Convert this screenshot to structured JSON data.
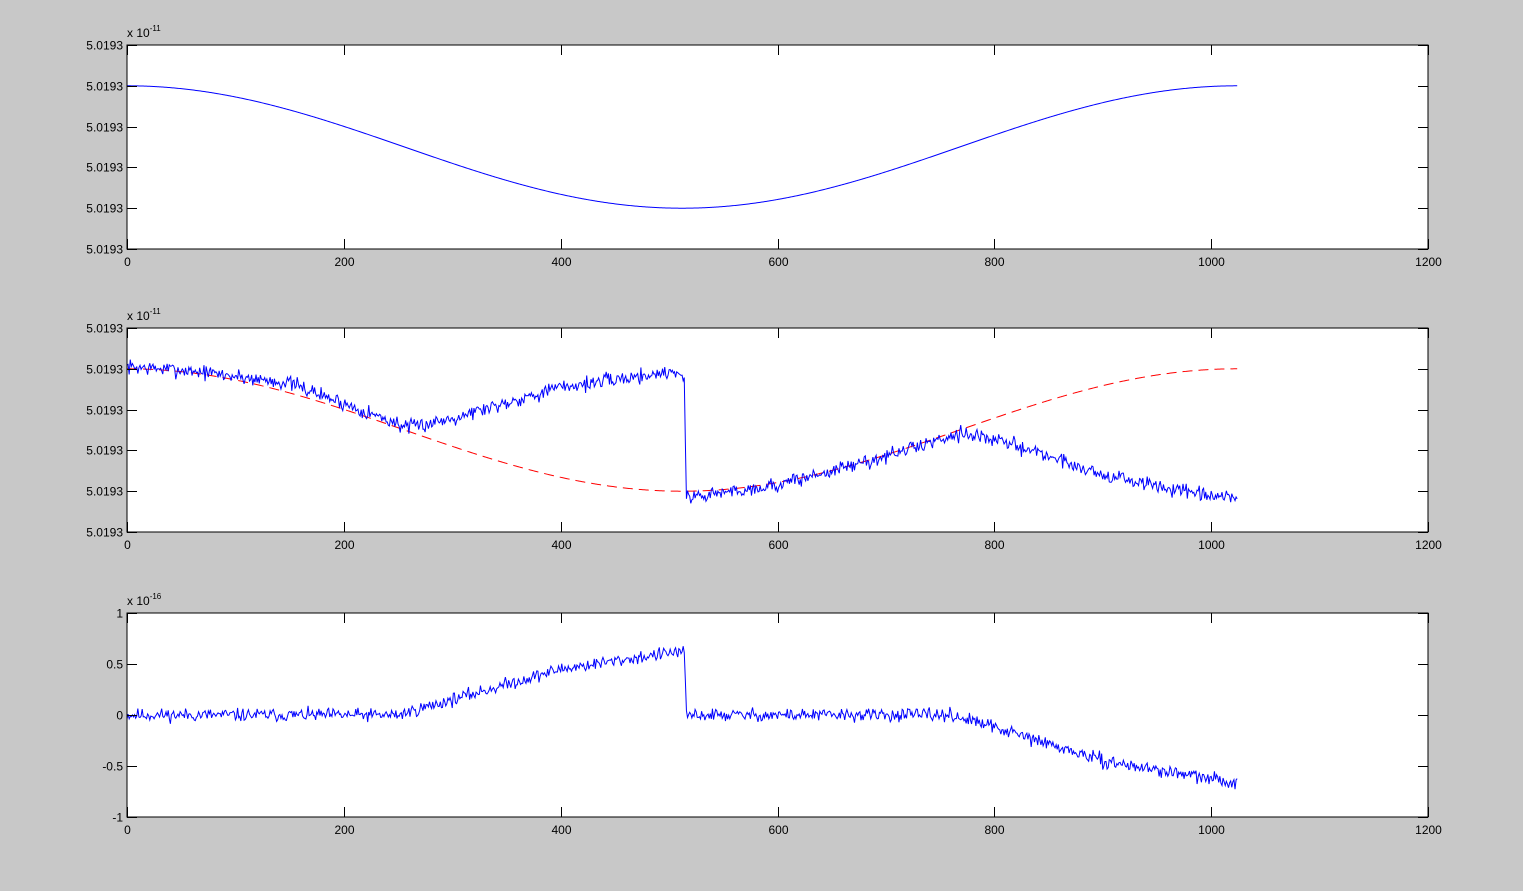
{
  "figure_background": "#c8c8c8",
  "axes_background": "#ffffff",
  "chart_data": [
    {
      "type": "line",
      "title": "",
      "xlabel": "",
      "ylabel": "",
      "xlim": [
        0,
        1200
      ],
      "xticks": [
        0,
        200,
        400,
        600,
        800,
        1000,
        1200
      ],
      "ylim": [
        0,
        5
      ],
      "yticks": [
        0,
        1,
        2,
        3,
        4,
        5
      ],
      "ytick_labels": [
        "5.0193",
        "5.0193",
        "5.0193",
        "5.0193",
        "5.0193",
        "5.0193"
      ],
      "exponent_label": {
        "base": "x 10",
        "power": "-11"
      },
      "grid": false,
      "legend": false,
      "series": [
        {
          "color": "#0000ff",
          "style": "solid",
          "generator": {
            "kind": "cosine",
            "x_start": 0,
            "x_end": 1024,
            "n": 1025,
            "center": 2.5,
            "amplitude": 1.5,
            "period": 1024
          }
        }
      ]
    },
    {
      "type": "line",
      "title": "",
      "xlabel": "",
      "ylabel": "",
      "xlim": [
        0,
        1200
      ],
      "xticks": [
        0,
        200,
        400,
        600,
        800,
        1000,
        1200
      ],
      "ylim": [
        0,
        5
      ],
      "yticks": [
        0,
        1,
        2,
        3,
        4,
        5
      ],
      "ytick_labels": [
        "5.0193",
        "5.0193",
        "5.0193",
        "5.0193",
        "5.0193",
        "5.0193"
      ],
      "exponent_label": {
        "base": "x 10",
        "power": "-11"
      },
      "grid": false,
      "legend": false,
      "series": [
        {
          "color": "#ff0000",
          "style": "dashed",
          "generator": {
            "kind": "cosine",
            "x_start": 0,
            "x_end": 1024,
            "n": 1025,
            "center": 2.5,
            "amplitude": 1.5,
            "period": 1024
          }
        },
        {
          "color": "#0000ff",
          "style": "solid",
          "generator": {
            "kind": "noisy_segments",
            "x_start": 0,
            "x_end": 1024,
            "n": 1025,
            "noise": 0.13,
            "seed": 7,
            "breakpoints": [
              {
                "x": 0,
                "y": 4.05
              },
              {
                "x": 60,
                "y": 3.95
              },
              {
                "x": 150,
                "y": 3.65
              },
              {
                "x": 260,
                "y": 2.55
              },
              {
                "x": 300,
                "y": 2.8
              },
              {
                "x": 400,
                "y": 3.55
              },
              {
                "x": 508,
                "y": 3.95
              },
              {
                "x": 514,
                "y": 3.7
              },
              {
                "x": 516,
                "y": 0.85
              },
              {
                "x": 600,
                "y": 1.15
              },
              {
                "x": 700,
                "y": 1.85
              },
              {
                "x": 770,
                "y": 2.45
              },
              {
                "x": 830,
                "y": 2.05
              },
              {
                "x": 900,
                "y": 1.4
              },
              {
                "x": 1000,
                "y": 0.85
              },
              {
                "x": 1024,
                "y": 0.85
              }
            ]
          }
        }
      ]
    },
    {
      "type": "line",
      "title": "",
      "xlabel": "",
      "ylabel": "",
      "xlim": [
        0,
        1200
      ],
      "xticks": [
        0,
        200,
        400,
        600,
        800,
        1000,
        1200
      ],
      "ylim": [
        -1,
        1
      ],
      "yticks": [
        -1,
        -0.5,
        0,
        0.5,
        1
      ],
      "ytick_labels": [
        "-1",
        "-0.5",
        "0",
        "0.5",
        "1"
      ],
      "exponent_label": {
        "base": "x 10",
        "power": "-16"
      },
      "grid": false,
      "legend": false,
      "series": [
        {
          "color": "#0000ff",
          "style": "solid",
          "generator": {
            "kind": "noisy_segments",
            "x_start": 0,
            "x_end": 1024,
            "n": 1025,
            "noise": 0.045,
            "seed": 11,
            "breakpoints": [
              {
                "x": 0,
                "y": 0.0
              },
              {
                "x": 250,
                "y": 0.0
              },
              {
                "x": 300,
                "y": 0.15
              },
              {
                "x": 400,
                "y": 0.45
              },
              {
                "x": 508,
                "y": 0.62
              },
              {
                "x": 514,
                "y": 0.6
              },
              {
                "x": 516,
                "y": 0.0
              },
              {
                "x": 760,
                "y": 0.0
              },
              {
                "x": 800,
                "y": -0.12
              },
              {
                "x": 900,
                "y": -0.45
              },
              {
                "x": 1024,
                "y": -0.67
              }
            ]
          }
        }
      ]
    }
  ]
}
